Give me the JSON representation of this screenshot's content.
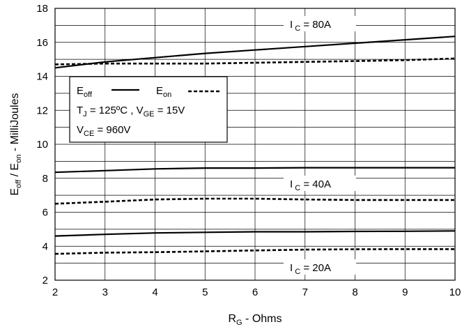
{
  "chart_data": {
    "type": "line",
    "xlabel": {
      "main": "R",
      "sub": "G",
      "rest": " - Ohms"
    },
    "ylabel": {
      "a": "E",
      "a_sub": "off",
      "b": " / E",
      "b_sub": "on",
      "rest": " - MilliJoules"
    },
    "xlim": [
      2,
      10
    ],
    "ylim": [
      2,
      18
    ],
    "xticks": [
      "2",
      "3",
      "4",
      "5",
      "6",
      "7",
      "8",
      "9",
      "10"
    ],
    "yticks": [
      "2",
      "4",
      "6",
      "8",
      "10",
      "12",
      "14",
      "16",
      "18"
    ],
    "grid": true,
    "legend": {
      "placement": "upper-left",
      "eoff": {
        "main": "E",
        "sub": "off"
      },
      "eon": {
        "main": "E",
        "sub": "on"
      },
      "line2": {
        "t": "T",
        "t_sub": "J",
        "t_rest": " = 125ºC ,  V",
        "v_sub": "GE",
        "v_rest": " = 15V"
      },
      "line3": {
        "v": "V",
        "v_sub": "CE",
        "v_rest": " = 960V"
      }
    },
    "annotations": [
      {
        "main": "I",
        "sub": " C",
        "rest": " = 80A"
      },
      {
        "main": "I",
        "sub": " C",
        "rest": " = 40A"
      },
      {
        "main": "I",
        "sub": " C",
        "rest": " = 20A"
      }
    ],
    "series": [
      {
        "group": "80A",
        "style": "solid",
        "x": [
          2,
          3,
          4,
          5,
          6,
          7,
          8,
          9,
          10
        ],
        "values": [
          14.5,
          14.85,
          15.1,
          15.35,
          15.55,
          15.75,
          15.95,
          16.15,
          16.35
        ]
      },
      {
        "group": "80A",
        "style": "dashed",
        "x": [
          2,
          3,
          4,
          5,
          6,
          7,
          8,
          9,
          10
        ],
        "values": [
          14.7,
          14.75,
          14.75,
          14.75,
          14.8,
          14.85,
          14.9,
          14.95,
          15.05
        ]
      },
      {
        "group": "40A",
        "style": "solid",
        "x": [
          2,
          3,
          4,
          5,
          6,
          7,
          8,
          9,
          10
        ],
        "values": [
          8.35,
          8.45,
          8.55,
          8.6,
          8.6,
          8.62,
          8.62,
          8.62,
          8.62
        ]
      },
      {
        "group": "40A",
        "style": "dashed",
        "x": [
          2,
          3,
          4,
          5,
          6,
          7,
          8,
          9,
          10
        ],
        "values": [
          6.5,
          6.62,
          6.75,
          6.8,
          6.8,
          6.75,
          6.72,
          6.72,
          6.72
        ]
      },
      {
        "group": "20A",
        "style": "solid",
        "x": [
          2,
          3,
          4,
          5,
          6,
          7,
          8,
          9,
          10
        ],
        "values": [
          4.6,
          4.7,
          4.78,
          4.82,
          4.85,
          4.85,
          4.87,
          4.88,
          4.9
        ]
      },
      {
        "group": "20A",
        "style": "dashed",
        "x": [
          2,
          3,
          4,
          5,
          6,
          7,
          8,
          9,
          10
        ],
        "values": [
          3.55,
          3.62,
          3.65,
          3.7,
          3.75,
          3.8,
          3.82,
          3.83,
          3.83
        ]
      }
    ]
  }
}
